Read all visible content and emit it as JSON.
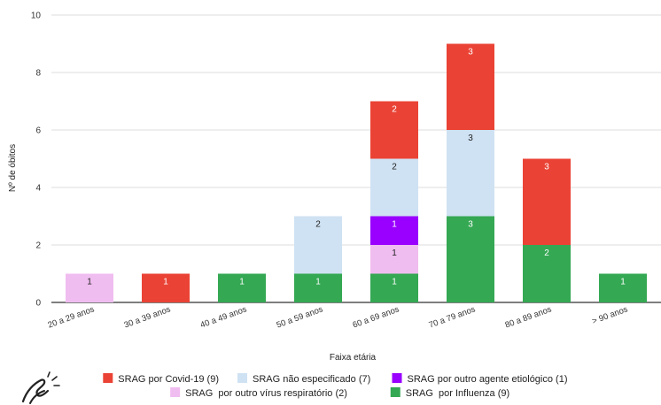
{
  "chart_data": {
    "type": "bar",
    "stacked": true,
    "title": "",
    "xlabel": "Faixa etária",
    "ylabel": "Nº de óbitos",
    "ylim": [
      0,
      10
    ],
    "yticks": [
      0,
      2,
      4,
      6,
      8,
      10
    ],
    "grid": true,
    "legend_position": "bottom",
    "categories": [
      "20 a 29 anos",
      "30 a 39 anos",
      "40 a 49 anos",
      "50 a 59 anos",
      "60 a 69 anos",
      "70 a 79 anos",
      "80 a 89 anos",
      "> 90 anos"
    ],
    "series": [
      {
        "name": "SRAG  por Influenza (9)",
        "color": "#34a853",
        "label_color": "#ffffff",
        "values": [
          0,
          0,
          1,
          1,
          1,
          3,
          2,
          1
        ]
      },
      {
        "name": "SRAG  por outro vírus respiratório (2)",
        "color": "#f0bdf0",
        "label_color": "#222222",
        "values": [
          1,
          0,
          0,
          0,
          1,
          0,
          0,
          0
        ]
      },
      {
        "name": "SRAG por outro agente etiológico (1)",
        "color": "#9900ff",
        "label_color": "#ffffff",
        "values": [
          0,
          0,
          0,
          0,
          1,
          0,
          0,
          0
        ]
      },
      {
        "name": "SRAG não especificado (7)",
        "color": "#cfe2f3",
        "label_color": "#222222",
        "values": [
          0,
          0,
          0,
          2,
          2,
          3,
          0,
          0
        ]
      },
      {
        "name": "SRAG por Covid-19 (9)",
        "color": "#ea4335",
        "label_color": "#ffffff",
        "values": [
          0,
          1,
          0,
          0,
          2,
          3,
          3,
          0
        ]
      }
    ],
    "legend_order": [
      4,
      3,
      2,
      1,
      0
    ]
  }
}
